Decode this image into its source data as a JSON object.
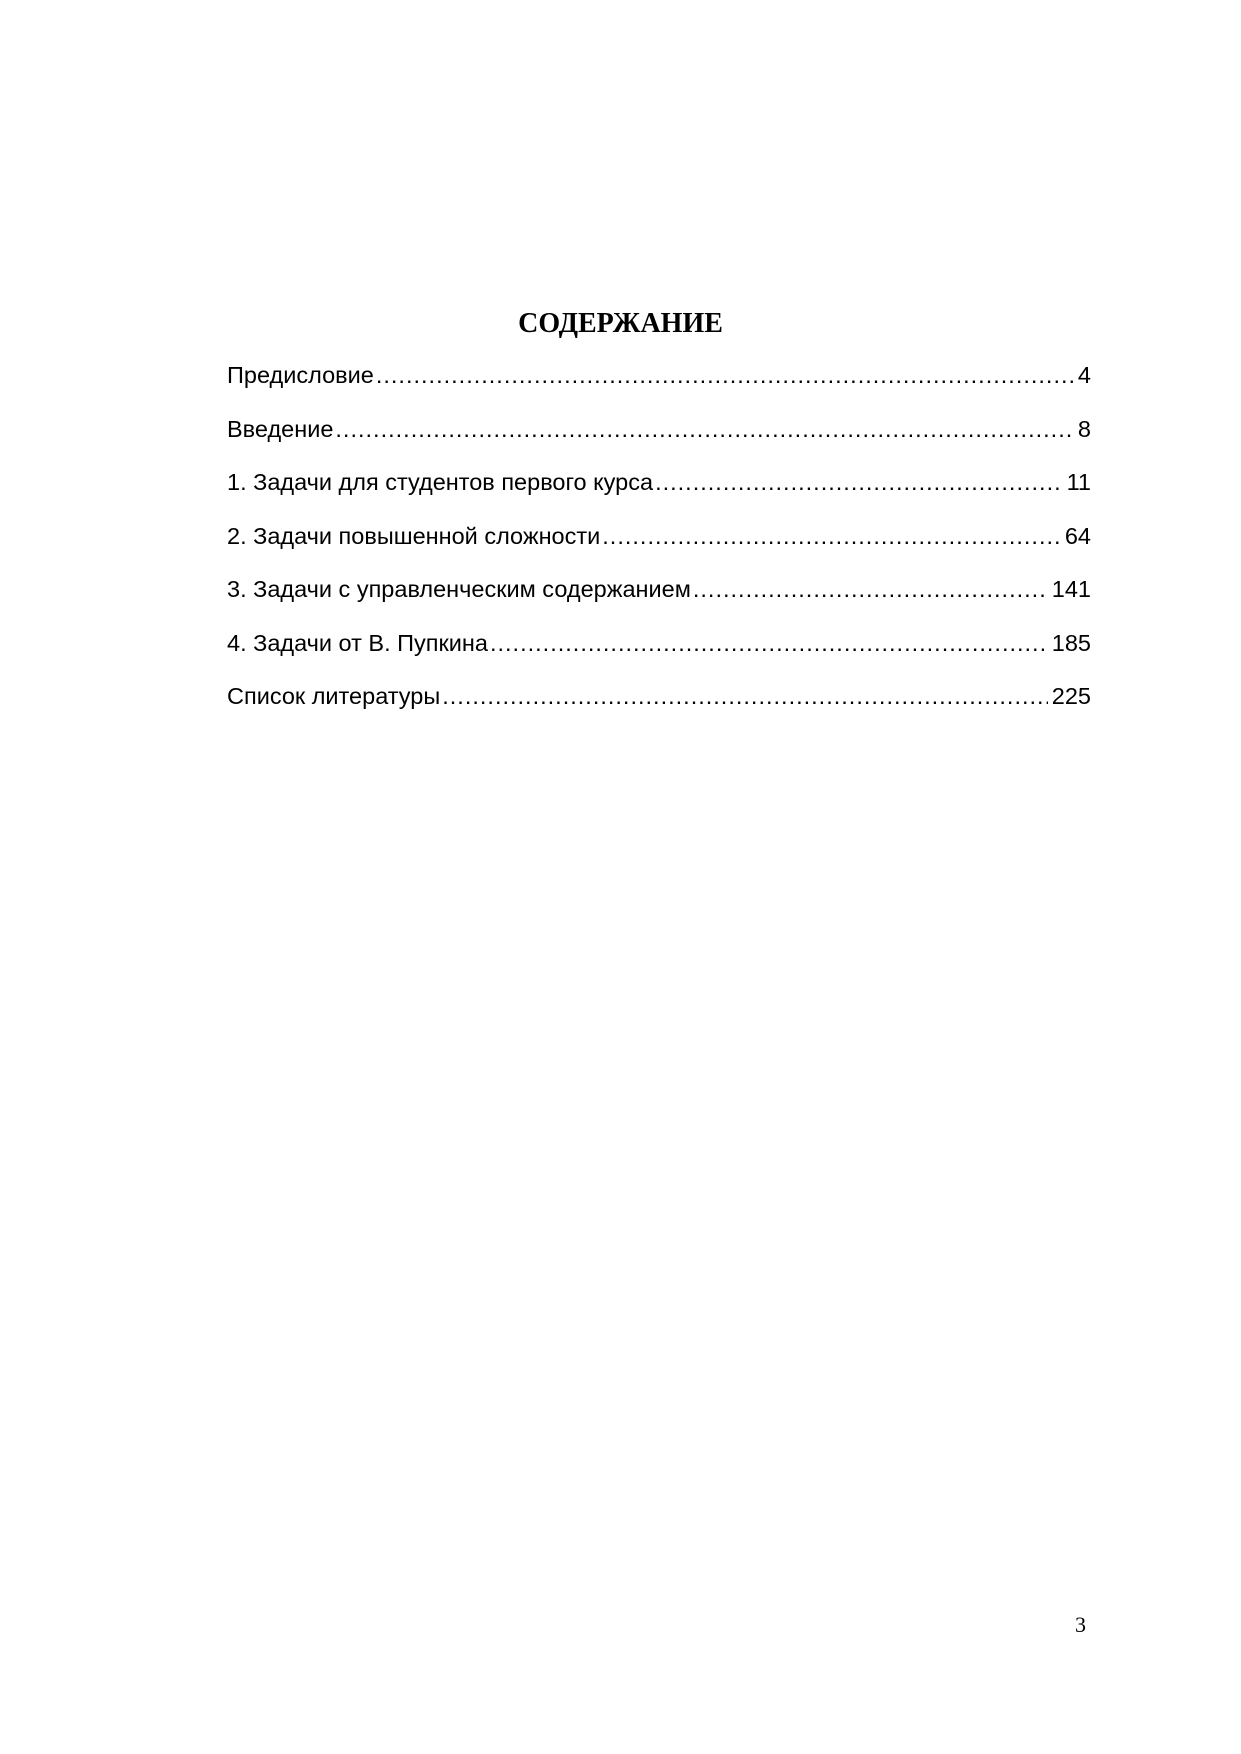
{
  "title": "СОДЕРЖАНИЕ",
  "toc": [
    {
      "label": "Предисловие",
      "page": "4"
    },
    {
      "label": "Введение",
      "page": "8"
    },
    {
      "label": "1. Задачи для студентов первого курса",
      "page": "11"
    },
    {
      "label": "2. Задачи повышенной сложности",
      "page": "64"
    },
    {
      "label": "3. Задачи с управленческим содержанием",
      "page": "141"
    },
    {
      "label": "4. Задачи от В. Пупкина",
      "page": "185"
    },
    {
      "label": "Список литературы",
      "page": "225"
    }
  ],
  "page_number": "3"
}
